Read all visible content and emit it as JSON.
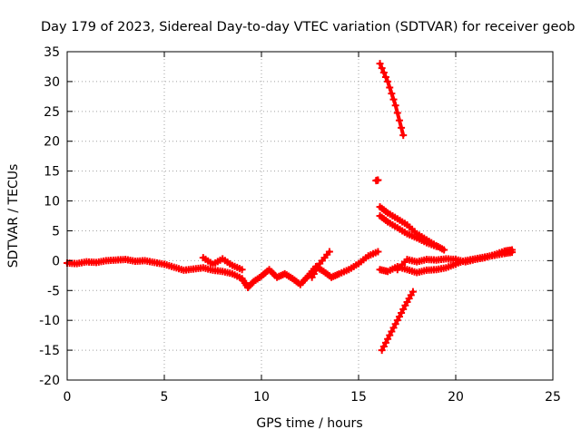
{
  "chart_data": {
    "type": "scatter",
    "title": "Day 179 of 2023, Sidereal Day-to-day VTEC variation (SDTVAR) for receiver geob",
    "xlabel": "GPS time / hours",
    "ylabel": "SDTVAR / TECUs",
    "xlim": [
      0,
      25
    ],
    "ylim": [
      -20,
      35
    ],
    "x_ticks": [
      "0",
      "5",
      "10",
      "15",
      "20",
      "25"
    ],
    "y_ticks": [
      "-20",
      "-15",
      "-10",
      "-5",
      "0",
      "5",
      "10",
      "15",
      "20",
      "25",
      "30",
      "35"
    ],
    "grid": true,
    "marker": "plus",
    "series": [
      {
        "color": "#ff0000",
        "segments": [
          [
            [
              0.0,
              -0.4
            ],
            [
              0.5,
              -0.5
            ],
            [
              1.0,
              -0.2
            ],
            [
              1.5,
              -0.3
            ],
            [
              2.0,
              0.0
            ],
            [
              2.5,
              0.1
            ],
            [
              3.0,
              0.2
            ],
            [
              3.5,
              -0.1
            ],
            [
              4.0,
              0.0
            ],
            [
              4.5,
              -0.3
            ],
            [
              5.0,
              -0.6
            ],
            [
              5.5,
              -1.1
            ],
            [
              6.0,
              -1.6
            ],
            [
              6.5,
              -1.4
            ],
            [
              7.0,
              -1.2
            ],
            [
              7.5,
              -1.6
            ],
            [
              8.0,
              -1.8
            ],
            [
              8.5,
              -2.2
            ],
            [
              9.0,
              -3.0
            ],
            [
              9.3,
              -4.5
            ],
            [
              9.6,
              -3.5
            ],
            [
              10.0,
              -2.6
            ],
            [
              10.4,
              -1.5
            ],
            [
              10.8,
              -2.8
            ],
            [
              11.2,
              -2.2
            ],
            [
              11.6,
              -3.0
            ],
            [
              12.0,
              -4.0
            ],
            [
              12.4,
              -2.6
            ],
            [
              12.8,
              -1.0
            ],
            [
              13.2,
              -1.8
            ],
            [
              13.6,
              -2.8
            ],
            [
              14.0,
              -2.2
            ],
            [
              14.5,
              -1.5
            ],
            [
              15.0,
              -0.5
            ],
            [
              15.5,
              0.8
            ],
            [
              16.0,
              1.5
            ]
          ],
          [
            [
              7.0,
              0.5
            ],
            [
              7.5,
              -0.6
            ],
            [
              8.0,
              0.3
            ],
            [
              8.5,
              -0.8
            ],
            [
              9.0,
              -1.5
            ]
          ],
          [
            [
              12.6,
              -2.8
            ],
            [
              13.0,
              -0.5
            ],
            [
              13.5,
              1.5
            ]
          ],
          [
            [
              15.9,
              13.4
            ],
            [
              16.0,
              13.5
            ]
          ],
          [
            [
              16.1,
              33.0
            ],
            [
              16.5,
              30.0
            ],
            [
              16.9,
              26.0
            ],
            [
              17.3,
              21.0
            ]
          ],
          [
            [
              16.1,
              9.0
            ],
            [
              16.5,
              8.0
            ],
            [
              17.0,
              7.0
            ],
            [
              17.5,
              6.0
            ],
            [
              18.0,
              4.5
            ],
            [
              18.5,
              3.5
            ],
            [
              19.0,
              2.5
            ],
            [
              19.4,
              1.8
            ]
          ],
          [
            [
              16.1,
              7.5
            ],
            [
              16.5,
              6.5
            ],
            [
              17.0,
              5.5
            ],
            [
              17.5,
              4.5
            ],
            [
              18.0,
              3.8
            ],
            [
              18.5,
              3.0
            ],
            [
              19.0,
              2.4
            ]
          ],
          [
            [
              16.1,
              -1.5
            ],
            [
              16.5,
              -1.8
            ],
            [
              17.0,
              -1.0
            ],
            [
              17.5,
              -1.5
            ],
            [
              18.0,
              -2.0
            ],
            [
              18.5,
              -1.6
            ],
            [
              19.0,
              -1.5
            ],
            [
              19.5,
              -1.2
            ],
            [
              20.0,
              -0.6
            ]
          ],
          [
            [
              17.0,
              -1.5
            ],
            [
              17.5,
              0.2
            ],
            [
              18.0,
              -0.2
            ],
            [
              18.5,
              0.2
            ],
            [
              19.0,
              0.1
            ],
            [
              19.5,
              0.3
            ],
            [
              20.0,
              0.2
            ],
            [
              20.5,
              -0.2
            ],
            [
              21.0,
              0.2
            ],
            [
              21.5,
              0.5
            ],
            [
              22.0,
              1.0
            ],
            [
              22.5,
              1.6
            ],
            [
              22.9,
              1.8
            ]
          ],
          [
            [
              20.0,
              -0.5
            ],
            [
              20.5,
              0.0
            ],
            [
              21.0,
              0.3
            ],
            [
              21.5,
              0.6
            ],
            [
              22.0,
              0.9
            ],
            [
              22.5,
              1.2
            ],
            [
              22.9,
              1.4
            ]
          ],
          [
            [
              16.2,
              -15.0
            ],
            [
              16.6,
              -12.5
            ],
            [
              17.0,
              -10.0
            ],
            [
              17.4,
              -7.5
            ],
            [
              17.8,
              -5.2
            ]
          ]
        ]
      }
    ]
  }
}
